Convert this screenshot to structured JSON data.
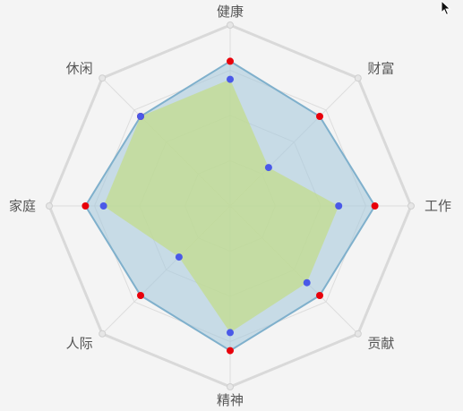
{
  "chart_data": {
    "type": "radar",
    "title": "",
    "axes": [
      "健康",
      "财富",
      "工作",
      "贡献",
      "精神",
      "人际",
      "家庭",
      "休闲"
    ],
    "max": 100,
    "rings": 4,
    "series": [
      {
        "name": "",
        "values": [
          80,
          70,
          80,
          70,
          80,
          70,
          80,
          70
        ],
        "fill": "#a9c9dc",
        "fill_opacity": 0.6,
        "stroke": "#7fb0cc",
        "point_color": "#e8000b"
      },
      {
        "name": "",
        "values": [
          70,
          30,
          60,
          60,
          70,
          40,
          70,
          70
        ],
        "fill": "#c3dc8c",
        "fill_opacity": 0.75,
        "stroke": "none",
        "point_color": "#4a59e8"
      }
    ],
    "colors": {
      "grid": "#dddddd",
      "grid_outer": "#d9d9d9",
      "background": "#f4f4f4"
    }
  }
}
